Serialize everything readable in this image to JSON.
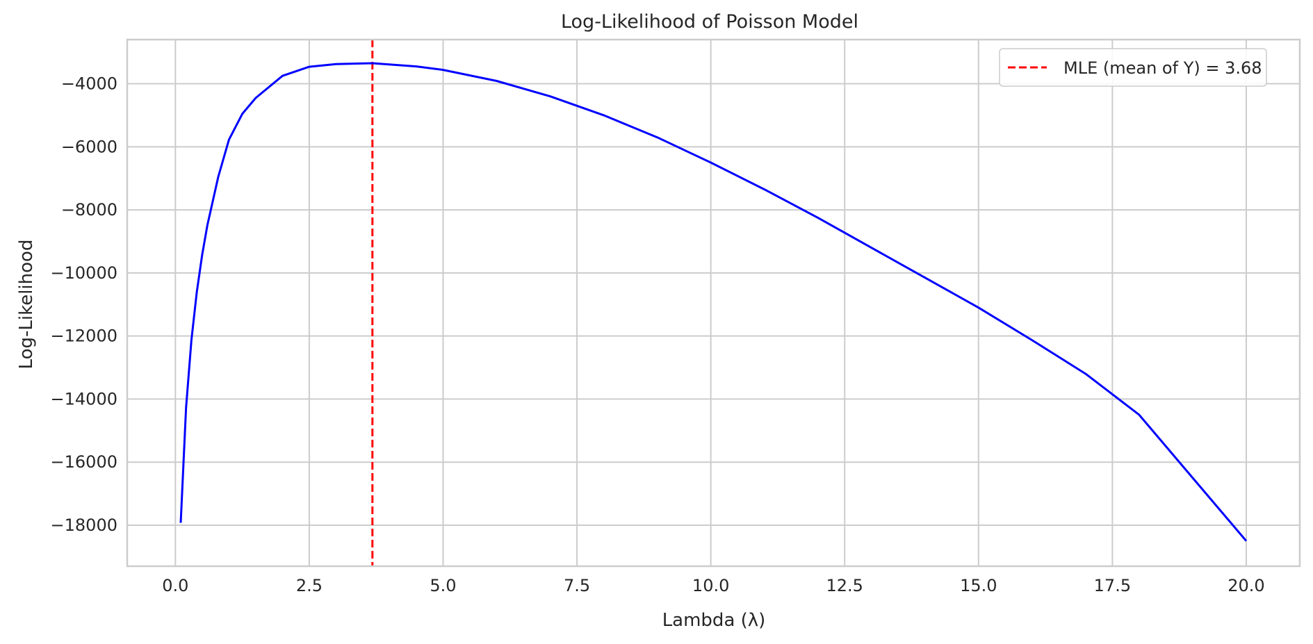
{
  "chart_data": {
    "type": "line",
    "title": "Log-Likelihood of Poisson Model",
    "xlabel": "Lambda (λ)",
    "ylabel": "Log-Likelihood",
    "xlim": [
      -0.9,
      21.0
    ],
    "ylim": [
      -19300,
      -2600
    ],
    "xticks": [
      0.0,
      2.5,
      5.0,
      7.5,
      10.0,
      12.5,
      15.0,
      17.5,
      20.0
    ],
    "xtick_labels": [
      "0.0",
      "2.5",
      "5.0",
      "7.5",
      "10.0",
      "12.5",
      "15.0",
      "17.5",
      "20.0"
    ],
    "yticks": [
      -4000,
      -6000,
      -8000,
      -10000,
      -12000,
      -14000,
      -16000,
      -18000
    ],
    "ytick_labels": [
      "−4000",
      "−6000",
      "−8000",
      "−10000",
      "−12000",
      "−14000",
      "−16000",
      "−18000"
    ],
    "grid": true,
    "legend_position": "top-right",
    "series": [
      {
        "name": "",
        "color": "#0000ff",
        "style": "solid",
        "x": [
          0.1,
          0.2,
          0.3,
          0.4,
          0.5,
          0.6,
          0.8,
          1.0,
          1.25,
          1.5,
          2.0,
          2.5,
          3.0,
          3.68,
          4.5,
          5.0,
          6.0,
          7.0,
          8.0,
          9.0,
          10.0,
          11.0,
          12.0,
          13.0,
          14.0,
          15.0,
          16.0,
          17.0,
          18.0,
          19.0,
          20.0
        ],
        "y": [
          -17926,
          -14268,
          -12128,
          -10610,
          -9432,
          -8470,
          -6952,
          -5775,
          -4956,
          -4450,
          -3749,
          -3461,
          -3375,
          -3350,
          -3450,
          -3560,
          -3910,
          -4400,
          -5000,
          -5700,
          -6500,
          -7350,
          -8250,
          -9200,
          -10150,
          -11100,
          -12130,
          -13200,
          -14500,
          -16500,
          -18500
        ]
      }
    ],
    "reference_line": {
      "label": "MLE (mean of Y) = 3.68",
      "x": 3.68,
      "color": "#ff0000",
      "style": "dashed"
    }
  }
}
